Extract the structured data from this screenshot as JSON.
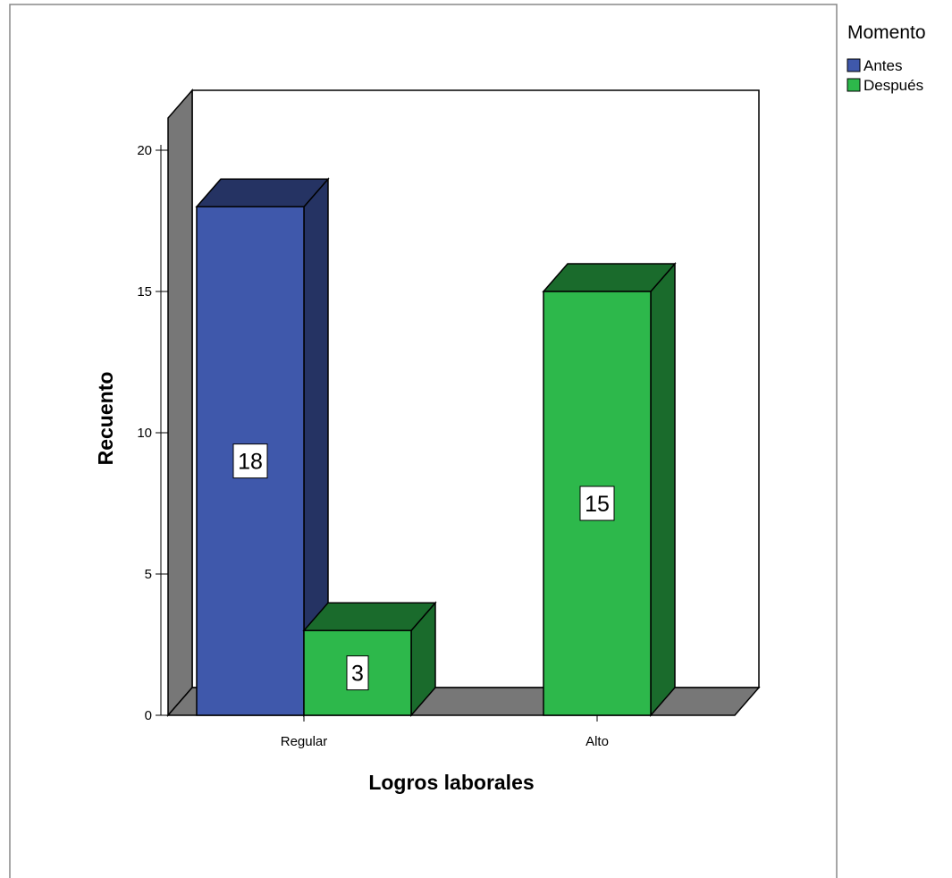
{
  "chart_data": {
    "type": "bar",
    "style": "3d-clustered",
    "xlabel": "Logros laborales",
    "ylabel": "Recuento",
    "categories": [
      "Regular",
      "Alto"
    ],
    "series": [
      {
        "name": "Antes",
        "color": "#3f58ab",
        "values": [
          18,
          null
        ]
      },
      {
        "name": "Después",
        "color": "#2db84b",
        "values": [
          3,
          15
        ]
      }
    ],
    "ylim": [
      0,
      20
    ],
    "yticks": [
      0,
      5,
      10,
      15,
      20
    ],
    "data_labels": true,
    "grid": false,
    "legend": {
      "title": "Momento",
      "placement": "top-right"
    }
  }
}
